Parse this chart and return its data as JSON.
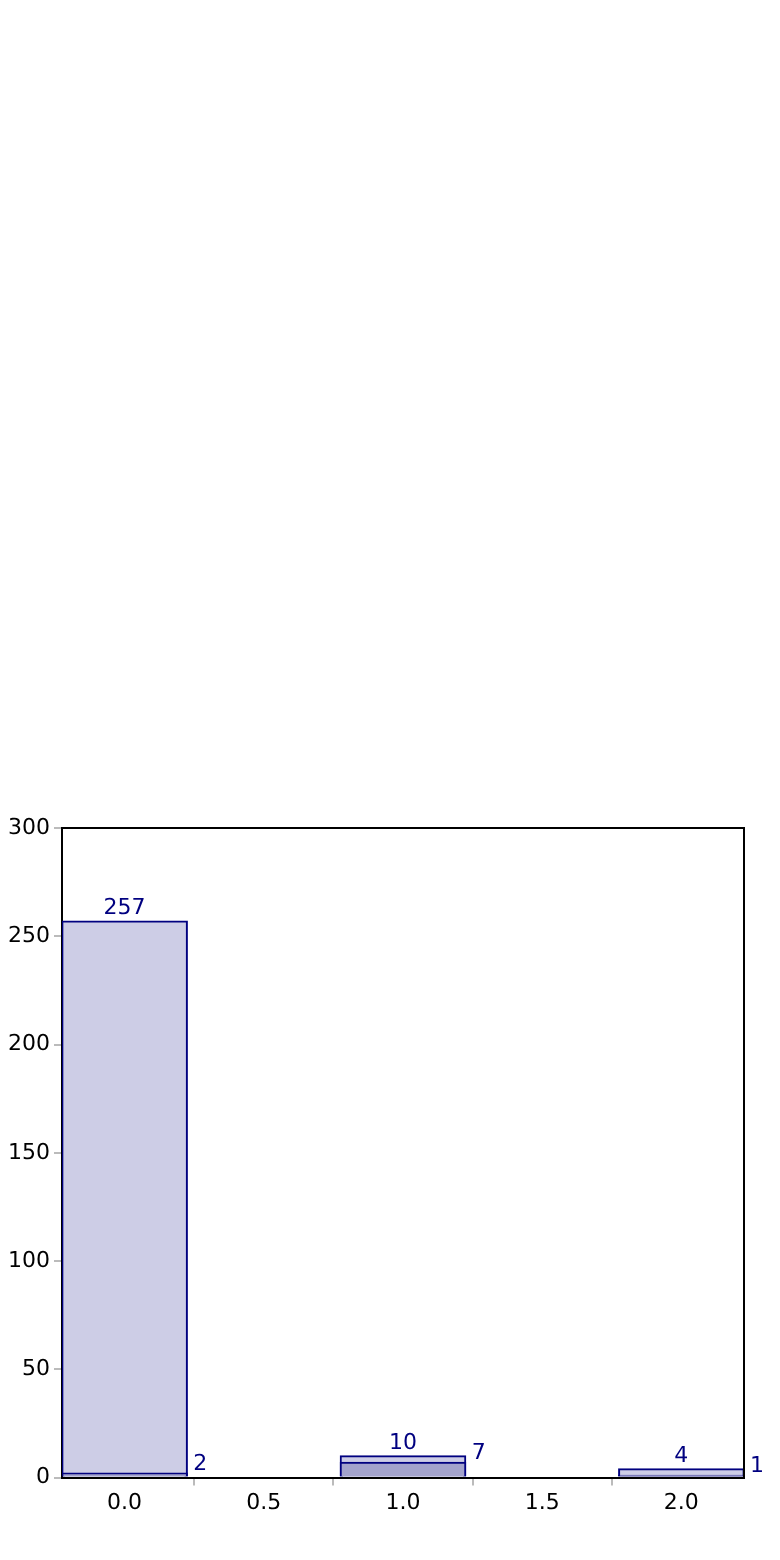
{
  "chart_data": {
    "type": "bar",
    "x": [
      0,
      1,
      2
    ],
    "series": [
      {
        "color": "#cdcde6",
        "values": [
          257,
          10,
          4
        ]
      },
      {
        "color": "#a3a3cc",
        "values": [
          2,
          7,
          1
        ]
      }
    ],
    "data_labels": true,
    "grid": false,
    "xlim": [
      -0.225,
      2.225
    ],
    "xticks": [
      {
        "value": 0,
        "label": "0.0"
      },
      {
        "value": 0.5,
        "label": "0.5"
      },
      {
        "value": 1,
        "label": "1.0"
      },
      {
        "value": 1.5,
        "label": "1.5"
      },
      {
        "value": 2,
        "label": "2.0"
      }
    ],
    "ylim": [
      0,
      300
    ],
    "yticks": [
      0,
      50,
      100,
      150,
      200,
      250,
      300
    ]
  }
}
